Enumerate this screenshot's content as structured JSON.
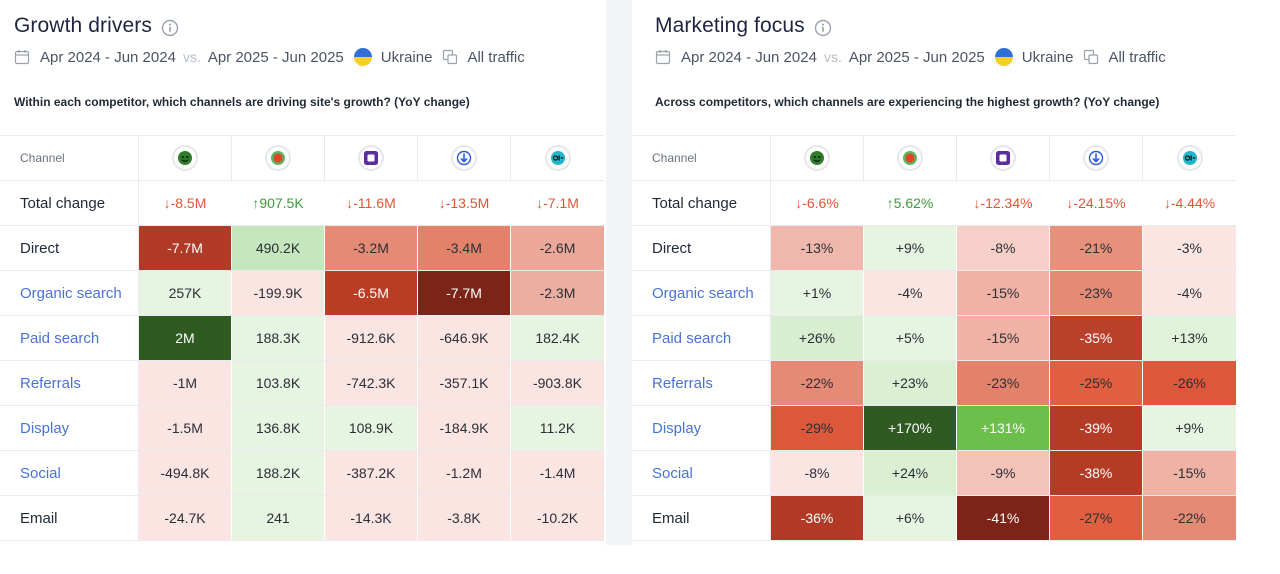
{
  "left": {
    "title": "Growth drivers",
    "date_a": "Apr 2024 - Jun 2024",
    "vs": "vs.",
    "date_b": "Apr 2025 - Jun 2025",
    "country": "Ukraine",
    "traffic": "All traffic",
    "question": "Within each competitor, which channels are driving site's growth? (YoY change)",
    "channel_header": "Channel",
    "total_label": "Total change",
    "totals": [
      {
        "arrow": "↓",
        "value": "-8.5M",
        "dir": "down"
      },
      {
        "arrow": "↑",
        "value": "907.5K",
        "dir": "up"
      },
      {
        "arrow": "↓",
        "value": "-11.6M",
        "dir": "down"
      },
      {
        "arrow": "↓",
        "value": "-13.5M",
        "dir": "down"
      },
      {
        "arrow": "↓",
        "value": "-7.1M",
        "dir": "down"
      }
    ],
    "rows": [
      {
        "label": "Direct",
        "link": false,
        "cells": [
          {
            "v": "-7.7M",
            "bg": "#b03a26",
            "dark": true
          },
          {
            "v": "490.2K",
            "bg": "#c6e6bd",
            "dark": false
          },
          {
            "v": "-3.2M",
            "bg": "#e58a74",
            "dark": false
          },
          {
            "v": "-3.4M",
            "bg": "#e3826b",
            "dark": false
          },
          {
            "v": "-2.6M",
            "bg": "#eba89a",
            "dark": false
          }
        ]
      },
      {
        "label": "Organic search",
        "link": true,
        "cells": [
          {
            "v": "257K",
            "bg": "#e6f4e1",
            "dark": false
          },
          {
            "v": "-199.9K",
            "bg": "#fbe5e3",
            "dark": false
          },
          {
            "v": "-6.5M",
            "bg": "#b83d24",
            "dark": true
          },
          {
            "v": "-7.7M",
            "bg": "#7d2419",
            "dark": true
          },
          {
            "v": "-2.3M",
            "bg": "#ecaea1",
            "dark": false
          }
        ]
      },
      {
        "label": "Paid search",
        "link": true,
        "cells": [
          {
            "v": "2M",
            "bg": "#2f5b22",
            "dark": true
          },
          {
            "v": "188.3K",
            "bg": "#e6f4e1",
            "dark": false
          },
          {
            "v": "-912.6K",
            "bg": "#fbe5e3",
            "dark": false
          },
          {
            "v": "-646.9K",
            "bg": "#fbe5e3",
            "dark": false
          },
          {
            "v": "182.4K",
            "bg": "#e6f4e1",
            "dark": false
          }
        ]
      },
      {
        "label": "Referrals",
        "link": true,
        "cells": [
          {
            "v": "-1M",
            "bg": "#fbe5e3",
            "dark": false
          },
          {
            "v": "103.8K",
            "bg": "#e6f4e1",
            "dark": false
          },
          {
            "v": "-742.3K",
            "bg": "#fbe5e3",
            "dark": false
          },
          {
            "v": "-357.1K",
            "bg": "#fbe5e3",
            "dark": false
          },
          {
            "v": "-903.8K",
            "bg": "#fbe5e3",
            "dark": false
          }
        ]
      },
      {
        "label": "Display",
        "link": true,
        "cells": [
          {
            "v": "-1.5M",
            "bg": "#fbe5e3",
            "dark": false
          },
          {
            "v": "136.8K",
            "bg": "#e6f4e1",
            "dark": false
          },
          {
            "v": "108.9K",
            "bg": "#e6f4e1",
            "dark": false
          },
          {
            "v": "-184.9K",
            "bg": "#fbe5e3",
            "dark": false
          },
          {
            "v": "11.2K",
            "bg": "#e6f4e1",
            "dark": false
          }
        ]
      },
      {
        "label": "Social",
        "link": true,
        "cells": [
          {
            "v": "-494.8K",
            "bg": "#fbe5e3",
            "dark": false
          },
          {
            "v": "188.2K",
            "bg": "#e6f4e1",
            "dark": false
          },
          {
            "v": "-387.2K",
            "bg": "#fbe5e3",
            "dark": false
          },
          {
            "v": "-1.2M",
            "bg": "#fbe5e3",
            "dark": false
          },
          {
            "v": "-1.4M",
            "bg": "#fbe5e3",
            "dark": false
          }
        ]
      },
      {
        "label": "Email",
        "link": false,
        "cells": [
          {
            "v": "-24.7K",
            "bg": "#fbe5e3",
            "dark": false
          },
          {
            "v": "241",
            "bg": "#e6f4e1",
            "dark": false
          },
          {
            "v": "-14.3K",
            "bg": "#fbe5e3",
            "dark": false
          },
          {
            "v": "-3.8K",
            "bg": "#fbe5e3",
            "dark": false
          },
          {
            "v": "-10.2K",
            "bg": "#fbe5e3",
            "dark": false
          }
        ]
      }
    ]
  },
  "right": {
    "title": "Marketing focus",
    "date_a": "Apr 2024 - Jun 2024",
    "vs": "vs.",
    "date_b": "Apr 2025 - Jun 2025",
    "country": "Ukraine",
    "traffic": "All traffic",
    "question": "Across competitors, which channels are experiencing the highest growth? (YoY change)",
    "channel_header": "Channel",
    "total_label": "Total change",
    "totals": [
      {
        "arrow": "↓",
        "value": "-6.6%",
        "dir": "down"
      },
      {
        "arrow": "↑",
        "value": "5.62%",
        "dir": "up"
      },
      {
        "arrow": "↓",
        "value": "-12.34%",
        "dir": "down"
      },
      {
        "arrow": "↓",
        "value": "-24.15%",
        "dir": "down"
      },
      {
        "arrow": "↓",
        "value": "-4.44%",
        "dir": "down"
      }
    ],
    "rows": [
      {
        "label": "Direct",
        "link": false,
        "cells": [
          {
            "v": "-13%",
            "bg": "#f0b8ac",
            "dark": false
          },
          {
            "v": "+9%",
            "bg": "#e6f4e1",
            "dark": false
          },
          {
            "v": "-8%",
            "bg": "#f6d0c8",
            "dark": false
          },
          {
            "v": "-21%",
            "bg": "#e7907b",
            "dark": false
          },
          {
            "v": "-3%",
            "bg": "#fbe5e3",
            "dark": false
          }
        ]
      },
      {
        "label": "Organic search",
        "link": true,
        "cells": [
          {
            "v": "+1%",
            "bg": "#e6f4e1",
            "dark": false
          },
          {
            "v": "-4%",
            "bg": "#fbe5e3",
            "dark": false
          },
          {
            "v": "-15%",
            "bg": "#efb2a4",
            "dark": false
          },
          {
            "v": "-23%",
            "bg": "#e58a74",
            "dark": false
          },
          {
            "v": "-4%",
            "bg": "#fbe5e3",
            "dark": false
          }
        ]
      },
      {
        "label": "Paid search",
        "link": true,
        "cells": [
          {
            "v": "+26%",
            "bg": "#d8eed0",
            "dark": false
          },
          {
            "v": "+5%",
            "bg": "#e6f4e1",
            "dark": false
          },
          {
            "v": "-15%",
            "bg": "#efb2a4",
            "dark": false
          },
          {
            "v": "-35%",
            "bg": "#b9412b",
            "dark": true
          },
          {
            "v": "+13%",
            "bg": "#e0f2da",
            "dark": false
          }
        ]
      },
      {
        "label": "Referrals",
        "link": true,
        "cells": [
          {
            "v": "-22%",
            "bg": "#e58a74",
            "dark": false
          },
          {
            "v": "+23%",
            "bg": "#dbefd3",
            "dark": false
          },
          {
            "v": "-23%",
            "bg": "#e3826b",
            "dark": false
          },
          {
            "v": "-25%",
            "bg": "#df5f40",
            "dark": false
          },
          {
            "v": "-26%",
            "bg": "#dd573a",
            "dark": false
          }
        ]
      },
      {
        "label": "Display",
        "link": true,
        "cells": [
          {
            "v": "-29%",
            "bg": "#dd573a",
            "dark": false
          },
          {
            "v": "+170%",
            "bg": "#2f5b22",
            "dark": true
          },
          {
            "v": "+131%",
            "bg": "#6cbf4b",
            "dark": true
          },
          {
            "v": "-39%",
            "bg": "#b43c26",
            "dark": true
          },
          {
            "v": "+9%",
            "bg": "#e6f4e1",
            "dark": false
          }
        ]
      },
      {
        "label": "Social",
        "link": true,
        "cells": [
          {
            "v": "-8%",
            "bg": "#fbe5e3",
            "dark": false
          },
          {
            "v": "+24%",
            "bg": "#dbefd3",
            "dark": false
          },
          {
            "v": "-9%",
            "bg": "#f3c2b8",
            "dark": false
          },
          {
            "v": "-38%",
            "bg": "#b43c26",
            "dark": true
          },
          {
            "v": "-15%",
            "bg": "#efb2a4",
            "dark": false
          }
        ]
      },
      {
        "label": "Email",
        "link": false,
        "cells": [
          {
            "v": "-36%",
            "bg": "#b03a26",
            "dark": true
          },
          {
            "v": "+6%",
            "bg": "#e6f4e1",
            "dark": false
          },
          {
            "v": "-41%",
            "bg": "#7d2419",
            "dark": true
          },
          {
            "v": "-27%",
            "bg": "#df5f40",
            "dark": false
          },
          {
            "v": "-22%",
            "bg": "#e58a74",
            "dark": false
          }
        ]
      }
    ]
  },
  "competitors": [
    {
      "icon": "green-face-logo-icon",
      "color": "#2f7d2a"
    },
    {
      "icon": "red-dot-logo-icon",
      "color": "#e0442b"
    },
    {
      "icon": "purple-square-logo-icon",
      "color": "#5b2d9e"
    },
    {
      "icon": "blue-arrow-logo-icon",
      "color": "#2a5bd7"
    },
    {
      "icon": "teal-oi-logo-icon",
      "color": "#1fb6c9"
    }
  ]
}
